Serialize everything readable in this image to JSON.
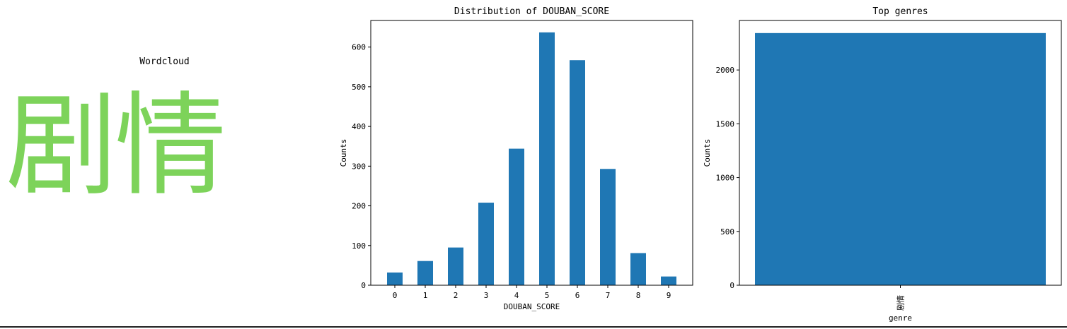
{
  "wordcloud": {
    "title": "Wordcloud",
    "word": "剧情",
    "color": "#7dd35a"
  },
  "chart_data": [
    {
      "type": "bar",
      "title": "Distribution of DOUBAN_SCORE",
      "xlabel": "DOUBAN_SCORE",
      "ylabel": "Counts",
      "categories": [
        "0",
        "1",
        "2",
        "3",
        "4",
        "5",
        "6",
        "7",
        "8",
        "9"
      ],
      "values": [
        32,
        61,
        95,
        208,
        344,
        637,
        567,
        293,
        81,
        22
      ],
      "ylim": [
        0,
        667
      ],
      "yticks": [
        0,
        100,
        200,
        300,
        400,
        500,
        600
      ],
      "grid": false,
      "color": "#1f77b4"
    },
    {
      "type": "bar",
      "title": "Top genres",
      "xlabel": "genre",
      "ylabel": "Counts",
      "categories": [
        "剧情"
      ],
      "values": [
        2343
      ],
      "ylim": [
        0,
        2460
      ],
      "yticks": [
        0,
        500,
        1000,
        1500,
        2000
      ],
      "grid": false,
      "color": "#1f77b4"
    }
  ]
}
